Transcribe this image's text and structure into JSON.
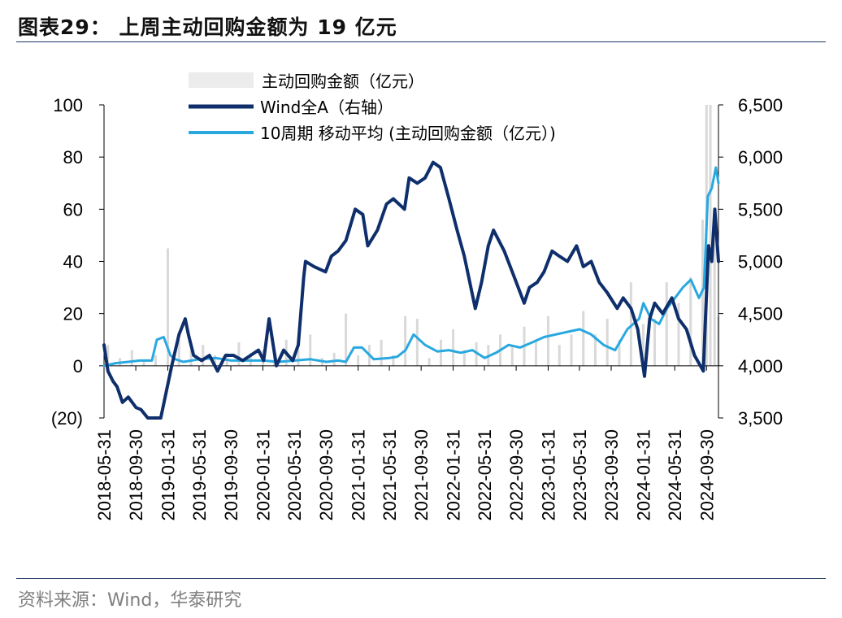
{
  "header": {
    "title": "图表29：  上周主动回购金额为 19 亿元"
  },
  "footer": {
    "source": "资料来源：Wind，华泰研究"
  },
  "colors": {
    "bars": "#d9d9d9",
    "wind": "#0e2f6b",
    "ma10": "#29a8e0",
    "rule": "#1f3864"
  },
  "chart_data": {
    "type": "line",
    "title": "",
    "left_axis": {
      "ticks": [
        100,
        80,
        60,
        40,
        20,
        0,
        -20
      ],
      "tick_labels": [
        "100",
        "80",
        "60",
        "40",
        "20",
        "0",
        "(20)"
      ],
      "ylim": [
        -20,
        100
      ]
    },
    "right_axis": {
      "ticks": [
        6500,
        6000,
        5500,
        5000,
        4500,
        4000,
        3500
      ],
      "tick_labels": [
        "6,500",
        "6,000",
        "5,500",
        "5,000",
        "4,500",
        "4,000",
        "3,500"
      ],
      "ylim": [
        3500,
        6500
      ]
    },
    "x_axis": {
      "tick_labels": [
        "2018-05-31",
        "2018-09-30",
        "2019-01-31",
        "2019-05-31",
        "2019-09-30",
        "2020-01-31",
        "2020-05-31",
        "2020-09-30",
        "2021-01-31",
        "2021-05-31",
        "2021-09-30",
        "2022-01-31",
        "2022-05-31",
        "2022-09-30",
        "2023-01-31",
        "2023-05-31",
        "2023-09-30",
        "2024-01-31",
        "2024-05-31",
        "2024-09-30"
      ],
      "range": [
        "2018-05-31",
        "2024-11-15"
      ]
    },
    "legend": [
      "主动回购金额（亿元）",
      "Wind全A（右轴）",
      "10周期 移动平均 (主动回购金额（亿元）)"
    ],
    "series": [
      {
        "name": "主动回购金额（亿元）",
        "type": "bar",
        "axis": "left",
        "x": [
          "2018-06-15",
          "2018-07-31",
          "2018-09-15",
          "2018-10-31",
          "2018-12-15",
          "2019-01-31",
          "2019-03-15",
          "2019-04-30",
          "2019-06-15",
          "2019-07-31",
          "2019-09-15",
          "2019-10-31",
          "2019-12-15",
          "2020-01-31",
          "2020-03-15",
          "2020-04-30",
          "2020-06-15",
          "2020-07-31",
          "2020-09-15",
          "2020-10-31",
          "2020-12-15",
          "2021-01-31",
          "2021-03-15",
          "2021-04-30",
          "2021-06-15",
          "2021-07-31",
          "2021-09-15",
          "2021-10-31",
          "2021-12-15",
          "2022-01-31",
          "2022-03-15",
          "2022-04-30",
          "2022-06-15",
          "2022-07-31",
          "2022-09-15",
          "2022-10-31",
          "2022-12-15",
          "2023-01-31",
          "2023-03-15",
          "2023-04-30",
          "2023-06-15",
          "2023-07-31",
          "2023-09-15",
          "2023-10-31",
          "2023-12-15",
          "2024-01-31",
          "2024-03-15",
          "2024-04-30",
          "2024-06-15",
          "2024-07-31",
          "2024-09-15",
          "2024-09-30",
          "2024-10-15",
          "2024-10-31",
          "2024-11-15"
        ],
        "values": [
          8,
          3,
          6,
          2,
          4,
          45,
          10,
          6,
          8,
          4,
          5,
          9,
          5,
          6,
          4,
          10,
          6,
          12,
          3,
          5,
          20,
          4,
          8,
          10,
          4,
          19,
          18,
          3,
          10,
          14,
          6,
          9,
          8,
          12,
          8,
          15,
          10,
          19,
          8,
          12,
          21,
          12,
          18,
          10,
          32,
          16,
          18,
          32,
          24,
          34,
          56,
          100,
          100,
          60,
          19
        ]
      },
      {
        "name": "Wind全A（右轴）",
        "type": "line",
        "axis": "right",
        "x": [
          "2018-05-31",
          "2018-06-15",
          "2018-07-05",
          "2018-07-20",
          "2018-08-10",
          "2018-09-01",
          "2018-10-01",
          "2018-10-20",
          "2018-11-15",
          "2018-12-15",
          "2019-01-04",
          "2019-02-15",
          "2019-03-15",
          "2019-04-08",
          "2019-04-20",
          "2019-05-10",
          "2019-06-10",
          "2019-07-10",
          "2019-08-10",
          "2019-09-10",
          "2019-10-10",
          "2019-11-15",
          "2019-12-15",
          "2020-01-14",
          "2020-02-03",
          "2020-02-24",
          "2020-03-23",
          "2020-04-20",
          "2020-05-25",
          "2020-06-15",
          "2020-07-06",
          "2020-07-13",
          "2020-08-15",
          "2020-09-28",
          "2020-10-20",
          "2020-11-15",
          "2020-12-15",
          "2021-01-20",
          "2021-02-18",
          "2021-03-09",
          "2021-04-15",
          "2021-05-20",
          "2021-06-15",
          "2021-07-28",
          "2021-08-15",
          "2021-09-15",
          "2021-10-15",
          "2021-11-15",
          "2021-12-13",
          "2022-01-15",
          "2022-02-15",
          "2022-03-15",
          "2022-04-26",
          "2022-05-20",
          "2022-06-15",
          "2022-07-05",
          "2022-08-15",
          "2022-09-15",
          "2022-10-31",
          "2022-11-20",
          "2022-12-20",
          "2023-01-15",
          "2023-02-15",
          "2023-03-15",
          "2023-04-15",
          "2023-05-20",
          "2023-06-15",
          "2023-07-15",
          "2023-08-15",
          "2023-09-15",
          "2023-10-23",
          "2023-11-15",
          "2023-12-15",
          "2024-01-10",
          "2024-02-05",
          "2024-02-25",
          "2024-03-15",
          "2024-04-15",
          "2024-05-20",
          "2024-06-15",
          "2024-07-15",
          "2024-08-15",
          "2024-09-18",
          "2024-09-25",
          "2024-10-08",
          "2024-10-20",
          "2024-11-01",
          "2024-11-15"
        ],
        "values": [
          4200,
          3950,
          3850,
          3800,
          3650,
          3700,
          3600,
          3580,
          3500,
          3400,
          3450,
          4000,
          4300,
          4450,
          4300,
          4100,
          4050,
          4100,
          3950,
          4100,
          4100,
          4050,
          4100,
          4150,
          4050,
          4450,
          4000,
          4150,
          4050,
          4200,
          4850,
          5000,
          4950,
          4900,
          5050,
          5100,
          5200,
          5500,
          5450,
          5150,
          5300,
          5550,
          5600,
          5500,
          5800,
          5750,
          5800,
          5950,
          5900,
          5600,
          5300,
          5050,
          4550,
          4800,
          5150,
          5300,
          5100,
          4900,
          4600,
          4750,
          4800,
          4900,
          5100,
          5050,
          5000,
          5150,
          4950,
          5000,
          4800,
          4700,
          4550,
          4650,
          4550,
          4350,
          3900,
          4450,
          4600,
          4500,
          4650,
          4450,
          4350,
          4100,
          3950,
          4400,
          5150,
          5000,
          5500,
          5000
        ]
      },
      {
        "name": "10周期 移动平均 (主动回购金额（亿元）)",
        "type": "line",
        "axis": "left",
        "x": [
          "2018-05-31",
          "2018-07-15",
          "2018-09-01",
          "2018-10-15",
          "2018-12-01",
          "2018-12-20",
          "2019-01-15",
          "2019-02-10",
          "2019-03-01",
          "2019-04-01",
          "2019-06-01",
          "2019-08-01",
          "2019-10-01",
          "2019-12-01",
          "2020-02-01",
          "2020-04-01",
          "2020-06-01",
          "2020-08-01",
          "2020-10-01",
          "2020-11-15",
          "2020-12-15",
          "2021-01-15",
          "2021-02-15",
          "2021-04-01",
          "2021-06-01",
          "2021-07-01",
          "2021-08-01",
          "2021-09-01",
          "2021-10-15",
          "2021-12-01",
          "2022-01-15",
          "2022-03-01",
          "2022-04-15",
          "2022-06-01",
          "2022-07-15",
          "2022-09-01",
          "2022-10-15",
          "2022-12-01",
          "2023-01-15",
          "2023-03-01",
          "2023-04-15",
          "2023-06-01",
          "2023-07-15",
          "2023-09-01",
          "2023-10-15",
          "2023-12-01",
          "2024-01-15",
          "2024-02-01",
          "2024-03-01",
          "2024-04-01",
          "2024-05-01",
          "2024-06-01",
          "2024-07-01",
          "2024-08-01",
          "2024-09-01",
          "2024-09-20",
          "2024-10-05",
          "2024-10-20",
          "2024-11-05",
          "2024-11-15"
        ],
        "values": [
          0,
          1,
          1.5,
          2,
          2,
          10,
          11,
          4,
          2.5,
          1.5,
          2.5,
          3,
          2,
          2,
          2,
          1.5,
          2,
          2.5,
          1.5,
          2,
          1.5,
          7,
          7,
          2.5,
          3,
          3.5,
          6,
          12,
          8,
          5.5,
          6,
          5,
          6,
          3,
          5,
          8,
          7,
          9,
          11,
          12,
          13,
          14,
          12,
          8,
          6,
          14,
          18,
          24,
          18,
          16,
          22,
          26,
          30,
          33,
          26,
          30,
          65,
          68,
          76,
          70
        ]
      }
    ]
  }
}
